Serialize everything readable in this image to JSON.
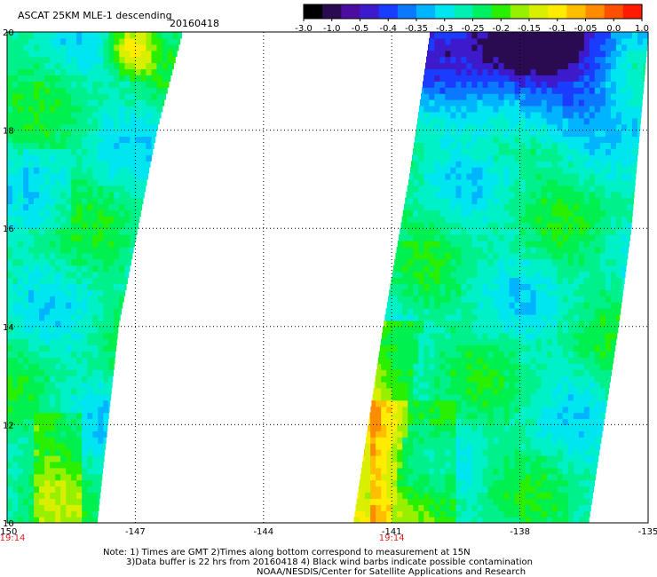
{
  "header": {
    "title": "ASCAT 25KM MLE-1 descending",
    "date": "20160418"
  },
  "colorbar": {
    "labels": [
      "-3.0",
      "-1.0",
      "-0.5",
      "-0.4",
      "-0.35",
      "-0.3",
      "-0.25",
      "-0.2",
      "-0.15",
      "-0.1",
      "-0.05",
      "0.0",
      "1.0"
    ],
    "colors": [
      "#000000",
      "#2a0a50",
      "#4b0da0",
      "#3d1bcc",
      "#1a3cff",
      "#0a78ff",
      "#00b4ff",
      "#00e6f0",
      "#00f0b4",
      "#00f064",
      "#28f000",
      "#96f000",
      "#d8f000",
      "#ffec00",
      "#ffbe00",
      "#ff8c00",
      "#ff5000",
      "#ff1a00"
    ]
  },
  "notes": {
    "line1": "Note: 1) Times are GMT 2)Times along bottom correspond to measurement at 15N",
    "line2": "3)Data buffer is 22 hrs from 20160418 4) Black wind barbs indicate possible contamination",
    "line3": "NOAA/NESDIS/Center for Satellite Applications and Research"
  },
  "chart_data": {
    "type": "heatmap",
    "title": "ASCAT 25KM MLE-1 descending",
    "date": "20160418",
    "xlim": [
      -150,
      -135
    ],
    "ylim": [
      10,
      20
    ],
    "x_tick_labels": [
      "-150",
      "-147",
      "-144",
      "-141",
      "-138",
      "-135"
    ],
    "y_tick_labels": [
      "10",
      "12",
      "14",
      "16",
      "18",
      "20"
    ],
    "grid": true,
    "grid_style": "dotted",
    "pass_times": [
      {
        "lon": -150,
        "label": "19:14"
      },
      {
        "lon": -141,
        "label": "19:14"
      }
    ],
    "swaths": [
      {
        "name": "west",
        "lon_left": [
          -150,
          -150
        ],
        "lon_right_at_lat": [
          [
            10,
            -147.9
          ],
          [
            14,
            -147.4
          ],
          [
            18,
            -146.5
          ],
          [
            20,
            -145.9
          ]
        ]
      },
      {
        "name": "east",
        "lon_left_at_lat": [
          [
            10,
            -141.9
          ],
          [
            14,
            -141.2
          ],
          [
            17,
            -140.6
          ],
          [
            20,
            -140.1
          ]
        ],
        "lon_right_at_lat": [
          [
            10,
            -136.4
          ],
          [
            14,
            -135.7
          ],
          [
            16,
            -135.4
          ],
          [
            20,
            -135.0
          ]
        ]
      }
    ],
    "colorbar_levels": [
      -3.0,
      -1.0,
      -0.5,
      -0.4,
      -0.35,
      -0.3,
      -0.25,
      -0.2,
      -0.15,
      -0.1,
      -0.05,
      0.0,
      1.0
    ],
    "features": [
      {
        "region": "east swath north (lat 18-20, lon -139 to -135)",
        "value_range": [
          -0.5,
          -0.35
        ],
        "description": "blue/purple minimum near -138, 19.5"
      },
      {
        "region": "east swath western edge (lat 10.5-14, lon -142 to -141)",
        "value_range": [
          -0.1,
          0.0
        ],
        "description": "yellow/orange"
      },
      {
        "region": "west swath northeast corner (lat 19-20, lon -147)",
        "value_range": [
          -0.1,
          0.0
        ],
        "description": "yellow/orange"
      },
      {
        "region": "interiors",
        "value_range": [
          -0.3,
          -0.2
        ],
        "description": "cyan/green"
      }
    ]
  }
}
